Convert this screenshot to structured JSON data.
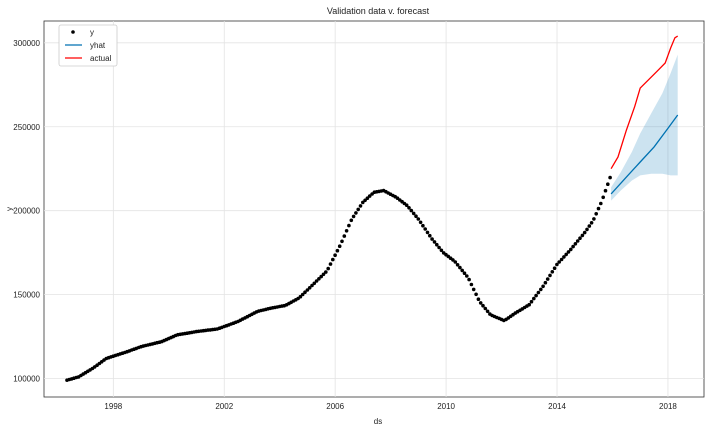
{
  "chart_data": {
    "type": "line",
    "title": "Validation data v. forecast",
    "xlabel": "ds",
    "ylabel": "y",
    "xlim": [
      1995.5,
      2019.3
    ],
    "ylim": [
      89000,
      313000
    ],
    "x_ticks": [
      1998,
      2002,
      2006,
      2010,
      2014,
      2018
    ],
    "y_ticks": [
      100000,
      150000,
      200000,
      250000,
      300000
    ],
    "grid": true,
    "legend_position": "top-left",
    "colors": {
      "y": "#000000",
      "yhat": "#0072B2",
      "actual": "#ff0000",
      "band": "#0072B2"
    },
    "series": [
      {
        "name": "y",
        "style": "points",
        "x_start": 1996.33,
        "x_end": 2015.92,
        "anchors": [
          [
            1996.33,
            99000
          ],
          [
            1996.75,
            101000
          ],
          [
            1997.25,
            106000
          ],
          [
            1997.75,
            112000
          ],
          [
            1998.5,
            116000
          ],
          [
            1999.0,
            119000
          ],
          [
            1999.75,
            122000
          ],
          [
            2000.3,
            126000
          ],
          [
            2001.0,
            128000
          ],
          [
            2001.75,
            129500
          ],
          [
            2002.5,
            134000
          ],
          [
            2003.2,
            140000
          ],
          [
            2003.7,
            142000
          ],
          [
            2004.2,
            143500
          ],
          [
            2004.7,
            148000
          ],
          [
            2005.2,
            156000
          ],
          [
            2005.7,
            164000
          ],
          [
            2006.2,
            180000
          ],
          [
            2006.6,
            195000
          ],
          [
            2007.0,
            205000
          ],
          [
            2007.4,
            211000
          ],
          [
            2007.75,
            212000
          ],
          [
            2008.2,
            208000
          ],
          [
            2008.6,
            203000
          ],
          [
            2009.0,
            195000
          ],
          [
            2009.5,
            183000
          ],
          [
            2009.9,
            175000
          ],
          [
            2010.3,
            170000
          ],
          [
            2010.8,
            160000
          ],
          [
            2011.2,
            146000
          ],
          [
            2011.6,
            138000
          ],
          [
            2012.1,
            134500
          ],
          [
            2012.5,
            139000
          ],
          [
            2013.0,
            144000
          ],
          [
            2013.5,
            155000
          ],
          [
            2014.0,
            168000
          ],
          [
            2014.5,
            177000
          ],
          [
            2015.0,
            187000
          ],
          [
            2015.3,
            194000
          ],
          [
            2015.6,
            205000
          ],
          [
            2015.92,
            220000
          ]
        ]
      },
      {
        "name": "yhat",
        "style": "line",
        "points": [
          [
            2015.95,
            210000
          ],
          [
            2016.5,
            220000
          ],
          [
            2017.0,
            229000
          ],
          [
            2017.5,
            238000
          ],
          [
            2018.0,
            249000
          ],
          [
            2018.35,
            257000
          ]
        ]
      },
      {
        "name": "actual",
        "style": "line",
        "points": [
          [
            2015.95,
            225000
          ],
          [
            2016.2,
            232000
          ],
          [
            2016.5,
            248000
          ],
          [
            2016.8,
            262000
          ],
          [
            2017.0,
            273000
          ],
          [
            2017.3,
            278000
          ],
          [
            2017.6,
            283000
          ],
          [
            2017.9,
            288000
          ],
          [
            2018.1,
            297000
          ],
          [
            2018.25,
            303000
          ],
          [
            2018.35,
            304000
          ]
        ]
      },
      {
        "name": "uncertainty",
        "style": "band",
        "points": [
          [
            2015.95,
            206000,
            214000
          ],
          [
            2016.3,
            212000,
            223000
          ],
          [
            2016.7,
            218000,
            235000
          ],
          [
            2017.0,
            221000,
            246000
          ],
          [
            2017.4,
            222000,
            258000
          ],
          [
            2017.8,
            222000,
            270000
          ],
          [
            2018.1,
            221000,
            282000
          ],
          [
            2018.35,
            221000,
            293000
          ]
        ]
      }
    ]
  }
}
